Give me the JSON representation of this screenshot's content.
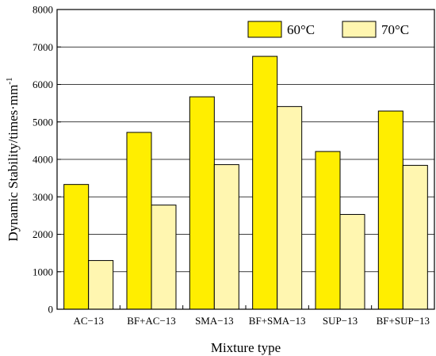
{
  "chart_data": {
    "type": "bar",
    "categories": [
      "AC−13",
      "BF+AC−13",
      "SMA−13",
      "BF+SMA−13",
      "SUP−13",
      "BF+SUP−13"
    ],
    "series": [
      {
        "name": "60°C",
        "values": [
          3330,
          4720,
          5670,
          6750,
          4210,
          5290
        ],
        "color": "#ffee00"
      },
      {
        "name": "70°C",
        "values": [
          1300,
          2780,
          3860,
          5410,
          2530,
          3840
        ],
        "color": "#fff6b0"
      }
    ],
    "xlabel": "Mixture type",
    "ylabel": "Dynamic Stability/times·mm",
    "ylabel_superscript": "-1",
    "ylim": [
      0,
      8000
    ],
    "yticks": [
      0,
      1000,
      2000,
      3000,
      4000,
      5000,
      6000,
      7000,
      8000
    ],
    "grid": true,
    "legend_position": "top-right"
  }
}
